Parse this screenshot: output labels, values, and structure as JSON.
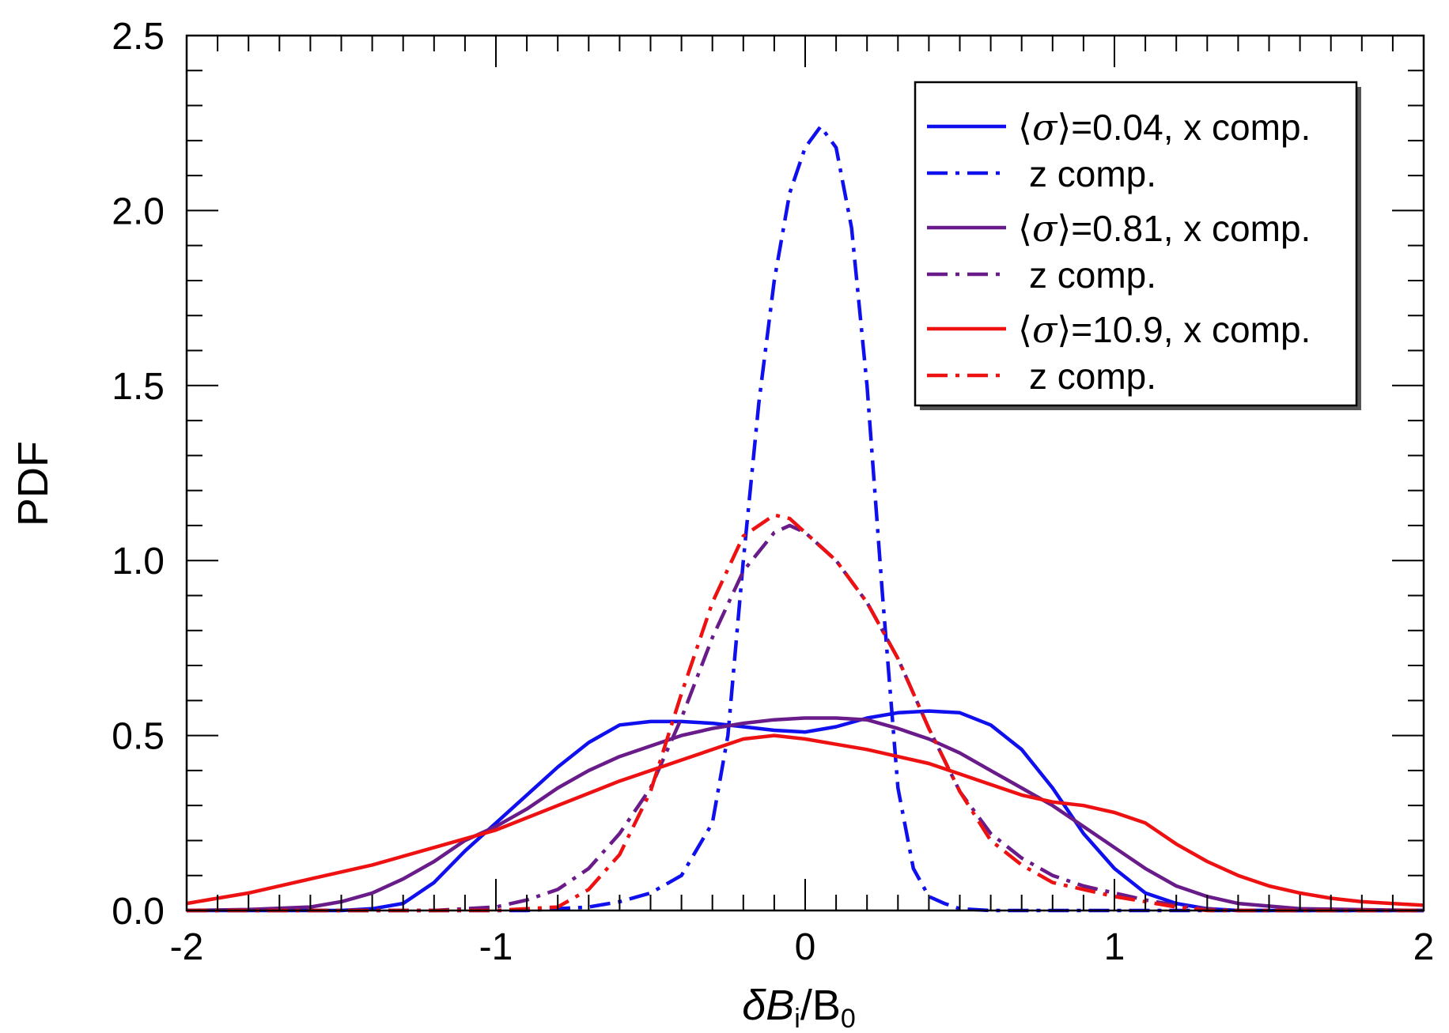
{
  "chart_data": {
    "type": "line",
    "title": "",
    "xlabel": "δB_i/B_0",
    "xlabel_parts": {
      "main": "δB",
      "sub1": "i",
      "slash": "/B",
      "sub2": "0"
    },
    "ylabel": "PDF",
    "xlim": [
      -2,
      2
    ],
    "ylim": [
      0,
      2.5
    ],
    "xticks": [
      -2,
      -1,
      0,
      1,
      2
    ],
    "xtick_labels": [
      "-2",
      "-1",
      "0",
      "1",
      "2"
    ],
    "yticks": [
      0,
      0.5,
      1.0,
      1.5,
      2.0,
      2.5
    ],
    "ytick_labels": [
      "0.0",
      "0.5",
      "1.0",
      "1.5",
      "2.0",
      "2.5"
    ],
    "grid": false,
    "legend_position": "top-right",
    "series": [
      {
        "name": "⟨σ⟩=0.04, x comp.",
        "color": "#1010ee",
        "dash": "solid",
        "points": [
          [
            -2,
            0
          ],
          [
            -1.5,
            0
          ],
          [
            -1.4,
            0.005
          ],
          [
            -1.3,
            0.02
          ],
          [
            -1.2,
            0.08
          ],
          [
            -1.1,
            0.17
          ],
          [
            -1.0,
            0.25
          ],
          [
            -0.9,
            0.33
          ],
          [
            -0.8,
            0.41
          ],
          [
            -0.7,
            0.48
          ],
          [
            -0.6,
            0.53
          ],
          [
            -0.5,
            0.54
          ],
          [
            -0.4,
            0.54
          ],
          [
            -0.3,
            0.535
          ],
          [
            -0.2,
            0.525
          ],
          [
            -0.1,
            0.515
          ],
          [
            0,
            0.51
          ],
          [
            0.1,
            0.525
          ],
          [
            0.2,
            0.55
          ],
          [
            0.3,
            0.565
          ],
          [
            0.4,
            0.57
          ],
          [
            0.5,
            0.565
          ],
          [
            0.6,
            0.53
          ],
          [
            0.7,
            0.46
          ],
          [
            0.8,
            0.35
          ],
          [
            0.9,
            0.22
          ],
          [
            1.0,
            0.12
          ],
          [
            1.1,
            0.05
          ],
          [
            1.2,
            0.02
          ],
          [
            1.3,
            0.005
          ],
          [
            1.4,
            0
          ],
          [
            2,
            0
          ]
        ]
      },
      {
        "name": "z comp.",
        "color": "#1010ee",
        "dash": "dashdot",
        "points": [
          [
            -2,
            0
          ],
          [
            -0.9,
            0
          ],
          [
            -0.8,
            0.005
          ],
          [
            -0.7,
            0.01
          ],
          [
            -0.6,
            0.025
          ],
          [
            -0.5,
            0.05
          ],
          [
            -0.4,
            0.1
          ],
          [
            -0.3,
            0.25
          ],
          [
            -0.25,
            0.5
          ],
          [
            -0.2,
            1.0
          ],
          [
            -0.15,
            1.45
          ],
          [
            -0.1,
            1.8
          ],
          [
            -0.05,
            2.05
          ],
          [
            0,
            2.18
          ],
          [
            0.05,
            2.24
          ],
          [
            0.1,
            2.18
          ],
          [
            0.15,
            1.95
          ],
          [
            0.2,
            1.5
          ],
          [
            0.25,
            0.9
          ],
          [
            0.3,
            0.35
          ],
          [
            0.35,
            0.12
          ],
          [
            0.4,
            0.04
          ],
          [
            0.45,
            0.02
          ],
          [
            0.5,
            0.005
          ],
          [
            0.6,
            0
          ],
          [
            2,
            0
          ]
        ]
      },
      {
        "name": "⟨σ⟩=0.81, x comp.",
        "color": "#6a1b8a",
        "dash": "solid",
        "points": [
          [
            -2,
            0
          ],
          [
            -1.8,
            0.003
          ],
          [
            -1.6,
            0.01
          ],
          [
            -1.5,
            0.025
          ],
          [
            -1.4,
            0.05
          ],
          [
            -1.3,
            0.09
          ],
          [
            -1.2,
            0.14
          ],
          [
            -1.1,
            0.2
          ],
          [
            -1.0,
            0.24
          ],
          [
            -0.9,
            0.29
          ],
          [
            -0.8,
            0.35
          ],
          [
            -0.7,
            0.4
          ],
          [
            -0.6,
            0.44
          ],
          [
            -0.5,
            0.47
          ],
          [
            -0.4,
            0.5
          ],
          [
            -0.3,
            0.52
          ],
          [
            -0.2,
            0.535
          ],
          [
            -0.1,
            0.545
          ],
          [
            0,
            0.55
          ],
          [
            0.1,
            0.55
          ],
          [
            0.2,
            0.545
          ],
          [
            0.3,
            0.52
          ],
          [
            0.4,
            0.49
          ],
          [
            0.5,
            0.45
          ],
          [
            0.6,
            0.4
          ],
          [
            0.7,
            0.35
          ],
          [
            0.8,
            0.3
          ],
          [
            0.9,
            0.24
          ],
          [
            1.0,
            0.18
          ],
          [
            1.1,
            0.12
          ],
          [
            1.2,
            0.07
          ],
          [
            1.3,
            0.04
          ],
          [
            1.4,
            0.02
          ],
          [
            1.6,
            0.005
          ],
          [
            2,
            0
          ]
        ]
      },
      {
        "name": "z comp.",
        "color": "#6a1b8a",
        "dash": "dashdot",
        "points": [
          [
            -2,
            0
          ],
          [
            -1.2,
            0
          ],
          [
            -1.1,
            0.005
          ],
          [
            -1.0,
            0.01
          ],
          [
            -0.9,
            0.03
          ],
          [
            -0.8,
            0.06
          ],
          [
            -0.7,
            0.12
          ],
          [
            -0.6,
            0.22
          ],
          [
            -0.5,
            0.35
          ],
          [
            -0.4,
            0.55
          ],
          [
            -0.3,
            0.78
          ],
          [
            -0.2,
            0.97
          ],
          [
            -0.1,
            1.08
          ],
          [
            -0.05,
            1.1
          ],
          [
            0,
            1.08
          ],
          [
            0.1,
            1.0
          ],
          [
            0.2,
            0.88
          ],
          [
            0.3,
            0.72
          ],
          [
            0.4,
            0.52
          ],
          [
            0.5,
            0.34
          ],
          [
            0.6,
            0.22
          ],
          [
            0.7,
            0.15
          ],
          [
            0.8,
            0.1
          ],
          [
            0.9,
            0.07
          ],
          [
            1.0,
            0.05
          ],
          [
            1.1,
            0.03
          ],
          [
            1.2,
            0.015
          ],
          [
            1.3,
            0.005
          ],
          [
            1.4,
            0
          ],
          [
            2,
            0
          ]
        ]
      },
      {
        "name": "⟨σ⟩=10.9, x comp.",
        "color": "#ee1111",
        "dash": "solid",
        "points": [
          [
            -2,
            0.02
          ],
          [
            -1.8,
            0.05
          ],
          [
            -1.6,
            0.09
          ],
          [
            -1.4,
            0.13
          ],
          [
            -1.2,
            0.18
          ],
          [
            -1.0,
            0.23
          ],
          [
            -0.8,
            0.3
          ],
          [
            -0.6,
            0.37
          ],
          [
            -0.4,
            0.43
          ],
          [
            -0.2,
            0.49
          ],
          [
            -0.1,
            0.5
          ],
          [
            0,
            0.49
          ],
          [
            0.1,
            0.475
          ],
          [
            0.2,
            0.46
          ],
          [
            0.3,
            0.44
          ],
          [
            0.4,
            0.42
          ],
          [
            0.5,
            0.39
          ],
          [
            0.6,
            0.36
          ],
          [
            0.7,
            0.33
          ],
          [
            0.8,
            0.31
          ],
          [
            0.9,
            0.3
          ],
          [
            1.0,
            0.28
          ],
          [
            1.1,
            0.25
          ],
          [
            1.2,
            0.19
          ],
          [
            1.3,
            0.14
          ],
          [
            1.4,
            0.1
          ],
          [
            1.5,
            0.07
          ],
          [
            1.6,
            0.05
          ],
          [
            1.7,
            0.035
          ],
          [
            1.8,
            0.025
          ],
          [
            2,
            0.015
          ]
        ]
      },
      {
        "name": "z comp.",
        "color": "#ee1111",
        "dash": "dashdot",
        "points": [
          [
            -2,
            0
          ],
          [
            -1.0,
            0
          ],
          [
            -0.9,
            0.005
          ],
          [
            -0.8,
            0.01
          ],
          [
            -0.7,
            0.06
          ],
          [
            -0.6,
            0.16
          ],
          [
            -0.5,
            0.34
          ],
          [
            -0.4,
            0.62
          ],
          [
            -0.3,
            0.88
          ],
          [
            -0.2,
            1.07
          ],
          [
            -0.1,
            1.13
          ],
          [
            -0.05,
            1.12
          ],
          [
            0,
            1.08
          ],
          [
            0.1,
            1.0
          ],
          [
            0.2,
            0.88
          ],
          [
            0.3,
            0.72
          ],
          [
            0.4,
            0.52
          ],
          [
            0.5,
            0.34
          ],
          [
            0.6,
            0.2
          ],
          [
            0.7,
            0.13
          ],
          [
            0.8,
            0.08
          ],
          [
            0.9,
            0.06
          ],
          [
            1.0,
            0.04
          ],
          [
            1.1,
            0.025
          ],
          [
            1.2,
            0.01
          ],
          [
            1.3,
            0
          ],
          [
            2,
            0
          ]
        ]
      }
    ]
  },
  "legend": {
    "entries": [
      {
        "prefix": "⟨",
        "sigma": "σ",
        "suffix": "⟩=0.04, x comp."
      },
      {
        "text": "z comp."
      },
      {
        "prefix": "⟨",
        "sigma": "σ",
        "suffix": "⟩=0.81, x comp."
      },
      {
        "text": "z comp."
      },
      {
        "prefix": "⟨",
        "sigma": "σ",
        "suffix": "⟩=10.9, x comp."
      },
      {
        "text": "z comp."
      }
    ]
  }
}
